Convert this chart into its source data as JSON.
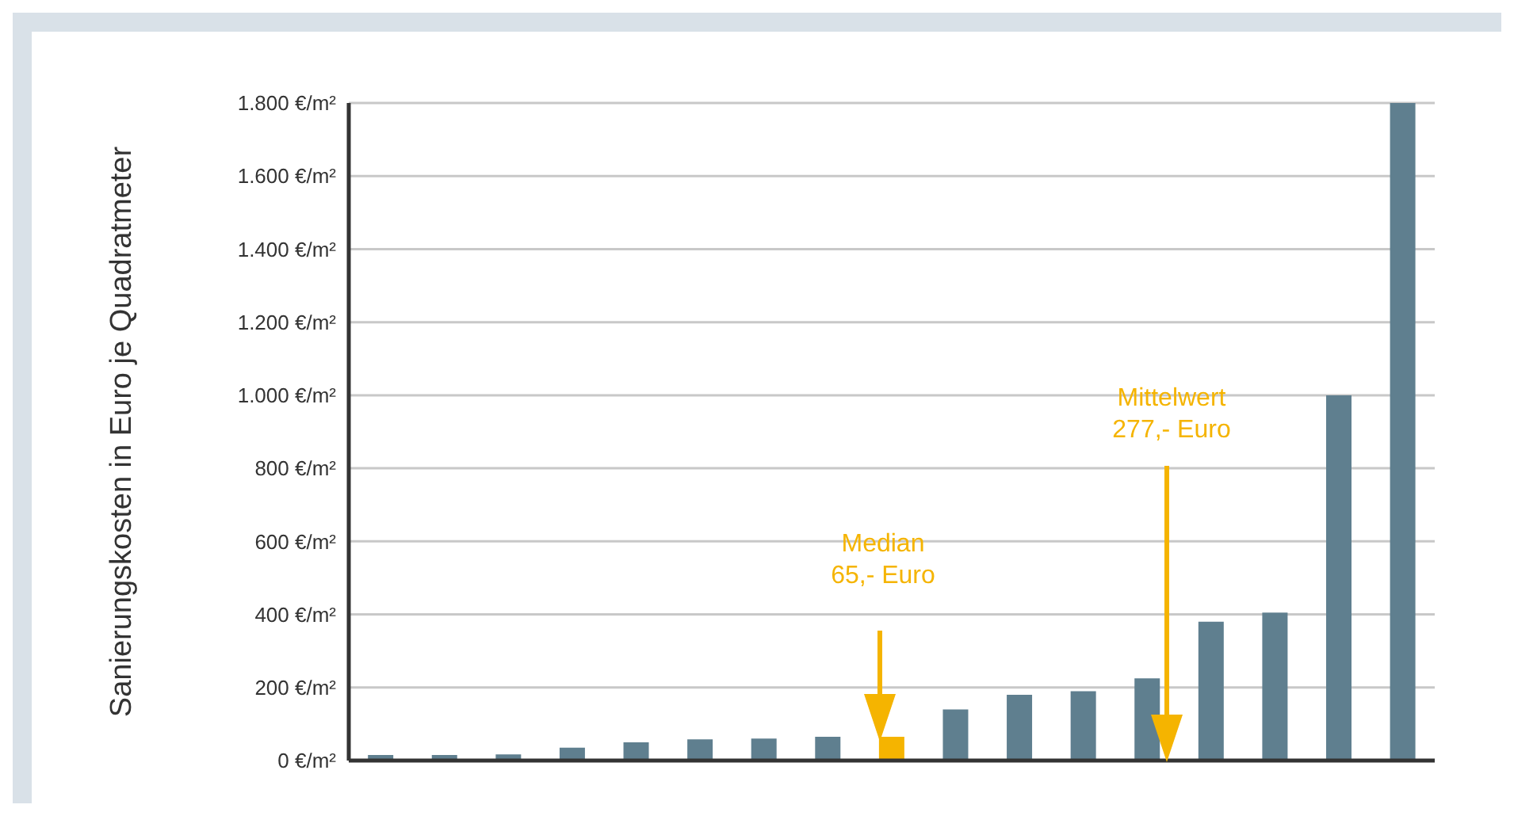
{
  "chart_data": {
    "type": "bar",
    "ylabel": "Sanierungskosten in Euro je Quadratmeter",
    "categories": [
      null,
      null,
      null,
      null,
      null,
      null,
      null,
      null,
      null,
      null,
      null,
      null,
      null,
      null,
      null,
      null,
      null
    ],
    "values": [
      15,
      15,
      17,
      35,
      50,
      58,
      60,
      65,
      65,
      140,
      180,
      190,
      225,
      380,
      405,
      1000,
      1800
    ],
    "colors": [
      "#5f7f8f",
      "#5f7f8f",
      "#5f7f8f",
      "#5f7f8f",
      "#5f7f8f",
      "#5f7f8f",
      "#5f7f8f",
      "#5f7f8f",
      "#f5b400",
      "#5f7f8f",
      "#5f7f8f",
      "#5f7f8f",
      "#5f7f8f",
      "#5f7f8f",
      "#5f7f8f",
      "#5f7f8f",
      "#5f7f8f"
    ],
    "ylim": [
      0,
      1800
    ],
    "yticks": [
      {
        "value": 0,
        "label": "0 €/m²"
      },
      {
        "value": 200,
        "label": "200 €/m²"
      },
      {
        "value": 400,
        "label": "400 €/m²"
      },
      {
        "value": 600,
        "label": "600 €/m²"
      },
      {
        "value": 800,
        "label": "800 €/m²"
      },
      {
        "value": 1000,
        "label": "1.000 €/m²"
      },
      {
        "value": 1200,
        "label": "1.200 €/m²"
      },
      {
        "value": 1400,
        "label": "1.400 €/m²"
      },
      {
        "value": 1600,
        "label": "1.600 €/m²"
      },
      {
        "value": 1800,
        "label": "1.800 €/m²"
      }
    ],
    "grid": "y",
    "annotations": [
      "Median\n65,- Euro",
      "Mittelwert\n277,- Euro"
    ]
  }
}
